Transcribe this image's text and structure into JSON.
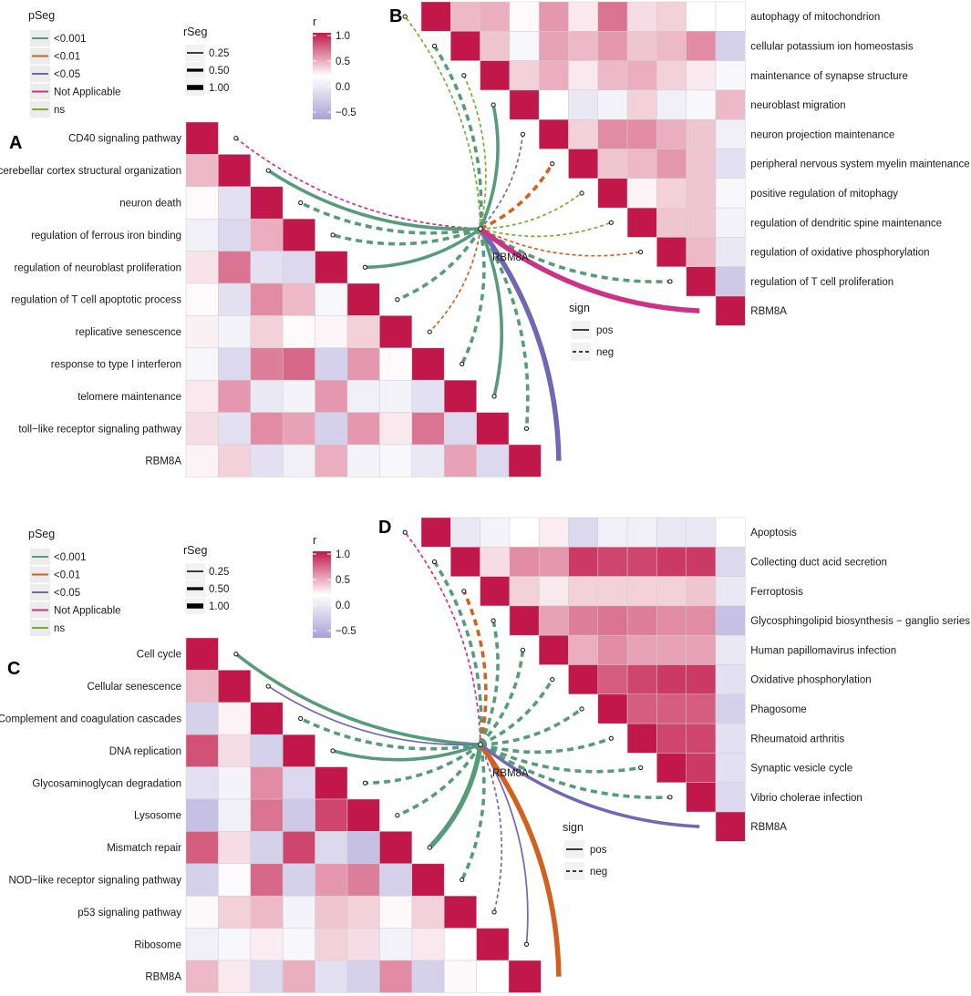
{
  "colors": {
    "low": "#aaa2d6",
    "mid": "#ffffff",
    "high": "#c2174a",
    "p001": "#579c7a",
    "p01": "#d2611f",
    "p05": "#7168b3",
    "na": "#cc3386",
    "ns": "#7aad30",
    "legend_key_bg": "#ececec",
    "cell_border": "#cfcfcf"
  },
  "legend": {
    "pseg_title": "pSeg",
    "pseg_items": [
      "<0.001",
      "<0.01",
      "<0.05",
      "Not Applicable",
      "ns"
    ],
    "rseg_title": "rSeg",
    "rseg_items": [
      "0.25",
      "0.50",
      "1.00"
    ],
    "r_title": "r",
    "r_ticks": [
      "1.0",
      "0.5",
      "0.0",
      "−0.5"
    ],
    "sign_title": "sign",
    "sign_items": [
      "pos",
      "neg"
    ]
  },
  "chart_data": [
    {
      "type": "heatmap",
      "panel": "A",
      "orientation": "lower",
      "gene": "RBM8A",
      "labels": [
        "CD40 signaling pathway",
        "cerebellar cortex structural organization",
        "neuron death",
        "regulation of ferrous iron binding",
        "regulation of neuroblast proliferation",
        "regulation of T cell apoptotic process",
        "replicative senescence",
        "response to type I interferon",
        "telomere maintenance",
        "toll−like receptor signaling pathway",
        "RBM8A"
      ],
      "matrix": [
        [],
        [
          0.3
        ],
        [
          0.02,
          -0.2
        ],
        [
          -0.1,
          -0.25,
          0.35
        ],
        [
          0.12,
          0.6,
          -0.2,
          -0.25
        ],
        [
          0.02,
          -0.2,
          0.5,
          0.3,
          -0.05
        ],
        [
          0.06,
          -0.08,
          0.2,
          0.02,
          0.04,
          0.2
        ],
        [
          -0.06,
          -0.25,
          0.55,
          0.65,
          -0.3,
          0.45,
          0.02
        ],
        [
          0.1,
          0.45,
          -0.15,
          -0.08,
          0.45,
          -0.1,
          -0.08,
          -0.2
        ],
        [
          0.15,
          -0.2,
          0.5,
          0.4,
          -0.3,
          0.45,
          0.1,
          0.6,
          -0.25
        ],
        [
          0.05,
          0.2,
          -0.2,
          -0.1,
          0.35,
          -0.08,
          -0.05,
          -0.15,
          0.4,
          -0.25
        ]
      ],
      "links": [
        {
          "term": "CD40 signaling pathway",
          "p": "Not Applicable",
          "r": 0.25,
          "sign": "neg"
        },
        {
          "term": "cerebellar cortex structural organization",
          "p": "<0.001",
          "r": 0.5,
          "sign": "pos"
        },
        {
          "term": "neuron death",
          "p": "<0.001",
          "r": 0.5,
          "sign": "neg"
        },
        {
          "term": "regulation of ferrous iron binding",
          "p": "<0.001",
          "r": 0.5,
          "sign": "neg"
        },
        {
          "term": "regulation of neuroblast proliferation",
          "p": "<0.001",
          "r": 0.5,
          "sign": "pos"
        },
        {
          "term": "regulation of T cell apoptotic process",
          "p": "<0.001",
          "r": 0.5,
          "sign": "neg"
        },
        {
          "term": "replicative senescence",
          "p": "<0.01",
          "r": 0.25,
          "sign": "neg"
        },
        {
          "term": "response to type I interferon",
          "p": "<0.001",
          "r": 0.5,
          "sign": "neg"
        },
        {
          "term": "telomere maintenance",
          "p": "<0.001",
          "r": 0.5,
          "sign": "pos"
        },
        {
          "term": "toll−like receptor signaling pathway",
          "p": "<0.001",
          "r": 0.5,
          "sign": "neg"
        },
        {
          "term": "RBM8A",
          "p": "<0.05",
          "r": 1.0,
          "sign": "pos"
        }
      ]
    },
    {
      "type": "heatmap",
      "panel": "B",
      "orientation": "upper",
      "gene": "RBM8A",
      "labels": [
        "autophagy of mitochondrion",
        "cellular potassium ion homeostasis",
        "maintenance of synapse structure",
        "neuroblast migration",
        "neuron projection maintenance",
        "peripheral nervous system myelin maintenance",
        "positive regulation of mitophagy",
        "regulation of dendritic spine maintenance",
        "regulation of oxidative phosphorylation",
        "regulation of T cell proliferation",
        "RBM8A"
      ],
      "matrix": [
        [
          0.3,
          0.35,
          0.02,
          0.45,
          0.1,
          0.6,
          0.15,
          0.2,
          0.0,
          0.0
        ],
        [
          0.25,
          -0.05,
          0.4,
          0.3,
          0.45,
          0.25,
          0.3,
          0.5,
          -0.3
        ],
        [
          0.2,
          0.35,
          0.1,
          0.3,
          0.35,
          0.2,
          0.1,
          -0.05
        ],
        [
          0.0,
          -0.15,
          -0.08,
          0.2,
          -0.1,
          -0.05,
          0.3
        ],
        [
          0.2,
          0.5,
          0.5,
          0.35,
          0.25,
          -0.1
        ],
        [
          0.25,
          0.3,
          0.45,
          0.25,
          -0.2
        ],
        [
          0.05,
          0.2,
          0.25,
          -0.05
        ],
        [
          0.25,
          0.25,
          -0.08
        ],
        [
          0.3,
          -0.15
        ],
        [
          -0.35
        ],
        []
      ],
      "links": [
        {
          "term": "autophagy of mitochondrion",
          "p": "ns",
          "r": 0.25,
          "sign": "neg"
        },
        {
          "term": "cellular potassium ion homeostasis",
          "p": "<0.001",
          "r": 0.5,
          "sign": "neg"
        },
        {
          "term": "maintenance of synapse structure",
          "p": "ns",
          "r": 0.25,
          "sign": "neg"
        },
        {
          "term": "neuroblast migration",
          "p": "<0.001",
          "r": 0.5,
          "sign": "pos"
        },
        {
          "term": "neuron projection maintenance",
          "p": "<0.05",
          "r": 0.25,
          "sign": "neg"
        },
        {
          "term": "peripheral nervous system myelin maintenance",
          "p": "<0.01",
          "r": 0.5,
          "sign": "neg"
        },
        {
          "term": "positive regulation of mitophagy",
          "p": "ns",
          "r": 0.25,
          "sign": "neg"
        },
        {
          "term": "regulation of dendritic spine maintenance",
          "p": "ns",
          "r": 0.25,
          "sign": "neg"
        },
        {
          "term": "regulation of oxidative phosphorylation",
          "p": "<0.01",
          "r": 0.25,
          "sign": "neg"
        },
        {
          "term": "regulation of T cell proliferation",
          "p": "<0.001",
          "r": 0.5,
          "sign": "neg"
        },
        {
          "term": "RBM8A",
          "p": "Not Applicable",
          "r": 1.0,
          "sign": "pos"
        }
      ]
    },
    {
      "type": "heatmap",
      "panel": "C",
      "orientation": "lower",
      "gene": "RBM8A",
      "labels": [
        "Cell cycle",
        "Cellular senescence",
        "Complement and coagulation cascades",
        "DNA replication",
        "Glycosaminoglycan degradation",
        "Lysosome",
        "Mismatch repair",
        "NOD−like receptor signaling pathway",
        "p53 signaling pathway",
        "Ribosome",
        "RBM8A"
      ],
      "matrix": [
        [],
        [
          0.3
        ],
        [
          -0.3,
          0.05
        ],
        [
          0.75,
          0.15,
          -0.3
        ],
        [
          -0.2,
          -0.08,
          0.5,
          -0.25
        ],
        [
          -0.4,
          -0.1,
          0.6,
          -0.35,
          0.8
        ],
        [
          0.7,
          0.15,
          -0.3,
          0.8,
          -0.25,
          -0.4
        ],
        [
          -0.3,
          -0.03,
          0.65,
          -0.3,
          0.45,
          0.55,
          -0.3
        ],
        [
          0.03,
          0.2,
          0.3,
          -0.08,
          0.25,
          0.2,
          0.03,
          0.2
        ],
        [
          -0.1,
          -0.05,
          0.08,
          -0.05,
          0.2,
          0.15,
          -0.08,
          0.1,
          0.0
        ],
        [
          0.3,
          0.1,
          -0.25,
          0.35,
          -0.2,
          -0.3,
          0.5,
          -0.3,
          0.03,
          0.0
        ]
      ],
      "links": [
        {
          "term": "Cell cycle",
          "p": "<0.001",
          "r": 0.5,
          "sign": "pos"
        },
        {
          "term": "Cellular senescence",
          "p": "<0.05",
          "r": 0.25,
          "sign": "pos"
        },
        {
          "term": "Complement and coagulation cascades",
          "p": "<0.001",
          "r": 0.5,
          "sign": "neg"
        },
        {
          "term": "DNA replication",
          "p": "<0.001",
          "r": 0.5,
          "sign": "pos"
        },
        {
          "term": "Glycosaminoglycan degradation",
          "p": "<0.001",
          "r": 0.5,
          "sign": "neg"
        },
        {
          "term": "Lysosome",
          "p": "<0.001",
          "r": 0.5,
          "sign": "neg"
        },
        {
          "term": "Mismatch repair",
          "p": "<0.001",
          "r": 1.0,
          "sign": "pos"
        },
        {
          "term": "NOD−like receptor signaling pathway",
          "p": "<0.001",
          "r": 0.5,
          "sign": "neg"
        },
        {
          "term": "p53 signaling pathway",
          "p": "<0.05",
          "r": 0.25,
          "sign": "neg"
        },
        {
          "term": "Ribosome",
          "p": "<0.05",
          "r": 0.25,
          "sign": "pos"
        },
        {
          "term": "RBM8A",
          "p": "<0.01",
          "r": 1.0,
          "sign": "pos"
        }
      ]
    },
    {
      "type": "heatmap",
      "panel": "D",
      "orientation": "upper",
      "gene": "RBM8A",
      "labels": [
        "Apoptosis",
        "Collecting duct acid secretion",
        "Ferroptosis",
        "Glycosphingolipid biosynthesis − ganglio series",
        "Human papillomavirus infection",
        "Oxidative phosphorylation",
        "Phagosome",
        "Rheumatoid arthritis",
        "Synaptic vesicle cycle",
        "Vibrio cholerae infection",
        "RBM8A"
      ],
      "matrix": [
        [
          -0.15,
          -0.08,
          0.0,
          0.08,
          -0.25,
          -0.1,
          -0.1,
          -0.15,
          -0.15,
          0.0
        ],
        [
          0.15,
          0.5,
          0.45,
          0.85,
          0.8,
          0.8,
          0.85,
          0.85,
          -0.25
        ],
        [
          0.2,
          0.1,
          0.2,
          0.2,
          0.2,
          0.2,
          0.25,
          -0.15
        ],
        [
          0.4,
          0.55,
          0.6,
          0.55,
          0.5,
          0.5,
          -0.4
        ],
        [
          0.35,
          0.5,
          0.4,
          0.4,
          0.4,
          -0.15
        ],
        [
          0.7,
          0.8,
          0.85,
          0.85,
          -0.2
        ],
        [
          0.7,
          0.7,
          0.7,
          -0.3
        ],
        [
          0.8,
          0.8,
          -0.2
        ],
        [
          0.85,
          -0.2
        ],
        [
          -0.25
        ],
        []
      ],
      "links": [
        {
          "term": "Apoptosis",
          "p": "Not Applicable",
          "r": 0.25,
          "sign": "neg"
        },
        {
          "term": "Collecting duct acid secretion",
          "p": "<0.001",
          "r": 0.5,
          "sign": "neg"
        },
        {
          "term": "Ferroptosis",
          "p": "<0.01",
          "r": 0.5,
          "sign": "neg"
        },
        {
          "term": "Glycosphingolipid biosynthesis − ganglio series",
          "p": "<0.001",
          "r": 0.5,
          "sign": "neg"
        },
        {
          "term": "Human papillomavirus infection",
          "p": "<0.001",
          "r": 0.5,
          "sign": "neg"
        },
        {
          "term": "Oxidative phosphorylation",
          "p": "<0.001",
          "r": 0.5,
          "sign": "neg"
        },
        {
          "term": "Phagosome",
          "p": "<0.001",
          "r": 0.5,
          "sign": "neg"
        },
        {
          "term": "Rheumatoid arthritis",
          "p": "<0.001",
          "r": 0.5,
          "sign": "neg"
        },
        {
          "term": "Synaptic vesicle cycle",
          "p": "<0.001",
          "r": 0.5,
          "sign": "neg"
        },
        {
          "term": "Vibrio cholerae infection",
          "p": "<0.001",
          "r": 0.5,
          "sign": "neg"
        },
        {
          "term": "RBM8A",
          "p": "<0.05",
          "r": 0.5,
          "sign": "pos"
        }
      ]
    }
  ]
}
